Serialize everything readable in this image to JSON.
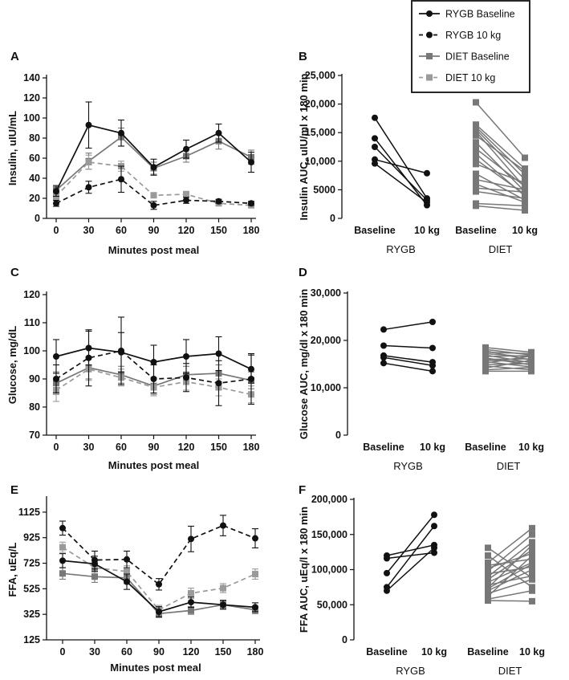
{
  "colors": {
    "rygb": "#111111",
    "diet_baseline": "#777777",
    "diet_10kg": "#9a9a9a"
  },
  "legend": [
    {
      "label": "RYGB Baseline",
      "color": "#111111",
      "dash": false,
      "marker": "circle"
    },
    {
      "label": "RYGB 10 kg",
      "color": "#111111",
      "dash": true,
      "marker": "circle"
    },
    {
      "label": "DIET Baseline",
      "color": "#777777",
      "dash": false,
      "marker": "square"
    },
    {
      "label": "DIET 10 kg",
      "color": "#9a9a9a",
      "dash": true,
      "marker": "square"
    }
  ],
  "chart_data": [
    {
      "panel": "A",
      "type": "line",
      "xlabel": "Minutes post meal",
      "ylabel": "Insulin, uIU/mL",
      "x": [
        0,
        30,
        60,
        90,
        120,
        150,
        180
      ],
      "xticks": [
        "0",
        "30",
        "60",
        "90",
        "120",
        "150",
        "180"
      ],
      "ylim": [
        0,
        140
      ],
      "yticks": [
        0,
        20,
        40,
        60,
        80,
        100,
        120,
        140
      ],
      "ytick_labels": [
        "0",
        "20",
        "40",
        "60",
        "80",
        "100",
        "120",
        "140"
      ],
      "series": [
        {
          "name": "RYGB Baseline",
          "values": [
            27,
            93,
            85,
            51,
            69,
            85,
            56
          ],
          "err": [
            5,
            23,
            13,
            8,
            9,
            9,
            10
          ]
        },
        {
          "name": "RYGB 10 kg",
          "values": [
            15,
            31,
            39,
            13,
            18,
            17,
            15
          ],
          "err": [
            3,
            6,
            13,
            4,
            3,
            2,
            2
          ]
        },
        {
          "name": "DIET Baseline",
          "values": [
            28,
            57,
            81,
            50,
            62,
            77,
            61
          ],
          "err": [
            5,
            8,
            9,
            6,
            6,
            8,
            7
          ]
        },
        {
          "name": "DIET 10 kg",
          "values": [
            22,
            56,
            52,
            23,
            24,
            15,
            13
          ],
          "err": [
            3,
            7,
            5,
            2,
            3,
            2,
            2
          ]
        }
      ]
    },
    {
      "panel": "B",
      "type": "paired",
      "ylabel": "Insulin AUC, uIU/ml x 180 min",
      "ylim": [
        0,
        25000
      ],
      "yticks": [
        0,
        5000,
        10000,
        15000,
        20000,
        25000
      ],
      "ytick_labels": [
        "0",
        "5000",
        "10,000",
        "15,000",
        "20,000",
        "25,000"
      ],
      "categories": [
        "Baseline",
        "10 kg",
        "Baseline",
        "10 kg"
      ],
      "groups": [
        "RYGB",
        "DIET"
      ],
      "rygb_pairs": [
        [
          17600,
          3500
        ],
        [
          14000,
          2300
        ],
        [
          12500,
          3200
        ],
        [
          10300,
          7900
        ],
        [
          9600,
          2800
        ]
      ],
      "diet_pairs": [
        [
          20300,
          10600
        ],
        [
          16400,
          8700
        ],
        [
          16000,
          7700
        ],
        [
          15600,
          6800
        ],
        [
          15200,
          5400
        ],
        [
          14500,
          8300
        ],
        [
          13300,
          4700
        ],
        [
          12200,
          5600
        ],
        [
          11300,
          3900
        ],
        [
          10300,
          4200
        ],
        [
          9500,
          6200
        ],
        [
          7800,
          3200
        ],
        [
          6800,
          5000
        ],
        [
          6000,
          2800
        ],
        [
          5300,
          4600
        ],
        [
          4700,
          3500
        ],
        [
          2600,
          2200
        ],
        [
          2200,
          1400
        ]
      ]
    },
    {
      "panel": "C",
      "type": "line",
      "xlabel": "Minutes post meal",
      "ylabel": "Glucose, mg/dL",
      "x": [
        0,
        30,
        60,
        90,
        120,
        150,
        180
      ],
      "xticks": [
        "0",
        "30",
        "60",
        "90",
        "120",
        "150",
        "180"
      ],
      "ylim": [
        70,
        120
      ],
      "yticks": [
        70,
        80,
        90,
        100,
        110,
        120
      ],
      "ytick_labels": [
        "70",
        "80",
        "90",
        "100",
        "110",
        "120"
      ],
      "series": [
        {
          "name": "RYGB Baseline",
          "values": [
            98,
            101,
            99.5,
            96,
            98,
            99,
            93.5
          ],
          "err": [
            6,
            6,
            7,
            6,
            6,
            6,
            5
          ]
        },
        {
          "name": "RYGB 10 kg",
          "values": [
            90,
            97.5,
            100,
            90,
            90.5,
            88.5,
            90
          ],
          "err": [
            5,
            10,
            12,
            5,
            5,
            8,
            9
          ]
        },
        {
          "name": "DIET Baseline",
          "values": [
            88.5,
            94,
            91.5,
            87.5,
            91.5,
            92,
            89.5
          ],
          "err": [
            4,
            4,
            3,
            3,
            3,
            3,
            3
          ]
        },
        {
          "name": "DIET 10 kg",
          "values": [
            86,
            93.5,
            90.5,
            87,
            89,
            87,
            84.5
          ],
          "err": [
            4,
            4,
            3,
            3,
            3,
            3,
            3
          ]
        }
      ]
    },
    {
      "panel": "D",
      "type": "paired",
      "ylabel": "Glucose AUC, mg/dl x 180 min",
      "ylim": [
        0,
        30000
      ],
      "yticks": [
        0,
        10000,
        20000,
        30000
      ],
      "ytick_labels": [
        "0",
        "10,000",
        "20,000",
        "30,000"
      ],
      "categories": [
        "Baseline",
        "10 kg",
        "Baseline",
        "10 kg"
      ],
      "groups": [
        "RYGB",
        "DIET"
      ],
      "rygb_pairs": [
        [
          22300,
          23900
        ],
        [
          18900,
          18400
        ],
        [
          16800,
          15400
        ],
        [
          16400,
          14700
        ],
        [
          15200,
          13500
        ]
      ],
      "diet_pairs": [
        [
          18500,
          17500
        ],
        [
          18100,
          16900
        ],
        [
          17800,
          15800
        ],
        [
          17500,
          17200
        ],
        [
          17200,
          16500
        ],
        [
          16900,
          15300
        ],
        [
          16600,
          16800
        ],
        [
          16300,
          14800
        ],
        [
          16000,
          16100
        ],
        [
          15800,
          15500
        ],
        [
          15500,
          14400
        ],
        [
          15200,
          16700
        ],
        [
          14900,
          15100
        ],
        [
          14600,
          13800
        ],
        [
          14200,
          15800
        ],
        [
          13800,
          14300
        ],
        [
          13500,
          13500
        ]
      ]
    },
    {
      "panel": "E",
      "type": "line",
      "xlabel": "Minutes post meal",
      "ylabel": "FFA, uEq/L",
      "x": [
        0,
        30,
        60,
        90,
        120,
        150,
        180
      ],
      "xticks": [
        "0",
        "30",
        "60",
        "90",
        "120",
        "150",
        "180"
      ],
      "ylim": [
        125,
        1225
      ],
      "yticks": [
        125,
        325,
        525,
        725,
        925,
        1125
      ],
      "ytick_labels": [
        "125",
        "325",
        "525",
        "725",
        "925",
        "1125"
      ],
      "series": [
        {
          "name": "RYGB Baseline",
          "values": [
            745,
            720,
            580,
            345,
            420,
            400,
            380
          ],
          "err": [
            55,
            60,
            60,
            40,
            40,
            35,
            35
          ]
        },
        {
          "name": "RYGB 10 kg",
          "values": [
            1000,
            750,
            755,
            560,
            915,
            1020,
            920
          ],
          "err": [
            55,
            70,
            65,
            45,
            100,
            80,
            75
          ]
        },
        {
          "name": "DIET Baseline",
          "values": [
            645,
            620,
            610,
            330,
            355,
            400,
            360
          ],
          "err": [
            45,
            45,
            45,
            30,
            30,
            30,
            30
          ]
        },
        {
          "name": "DIET 10 kg",
          "values": [
            850,
            690,
            660,
            360,
            490,
            530,
            640
          ],
          "err": [
            40,
            45,
            45,
            35,
            40,
            35,
            40
          ]
        }
      ]
    },
    {
      "panel": "F",
      "type": "paired",
      "ylabel": "FFA AUC, uEq/l x 180 min",
      "ylim": [
        0,
        200000
      ],
      "yticks": [
        0,
        50000,
        100000,
        150000,
        200000
      ],
      "ytick_labels": [
        "0",
        "50,000",
        "100,000",
        "150,000",
        "200,000"
      ],
      "categories": [
        "Baseline",
        "10 kg",
        "Baseline",
        "10 kg"
      ],
      "groups": [
        "RYGB",
        "DIET"
      ],
      "rygb_pairs": [
        [
          120000,
          135000
        ],
        [
          116000,
          124000
        ],
        [
          95000,
          178000
        ],
        [
          75000,
          162000
        ],
        [
          70000,
          131000
        ]
      ],
      "diet_pairs": [
        [
          131000,
          88000
        ],
        [
          120000,
          75000
        ],
        [
          110000,
          159000
        ],
        [
          106000,
          115000
        ],
        [
          102000,
          123000
        ],
        [
          98000,
          150000
        ],
        [
          94000,
          104000
        ],
        [
          90000,
          139000
        ],
        [
          86000,
          128000
        ],
        [
          82000,
          110000
        ],
        [
          78000,
          91000
        ],
        [
          74000,
          135000
        ],
        [
          70000,
          100000
        ],
        [
          66000,
          86000
        ],
        [
          62000,
          120000
        ],
        [
          58000,
          70000
        ],
        [
          56000,
          55000
        ],
        [
          73000,
          108000
        ]
      ]
    }
  ]
}
